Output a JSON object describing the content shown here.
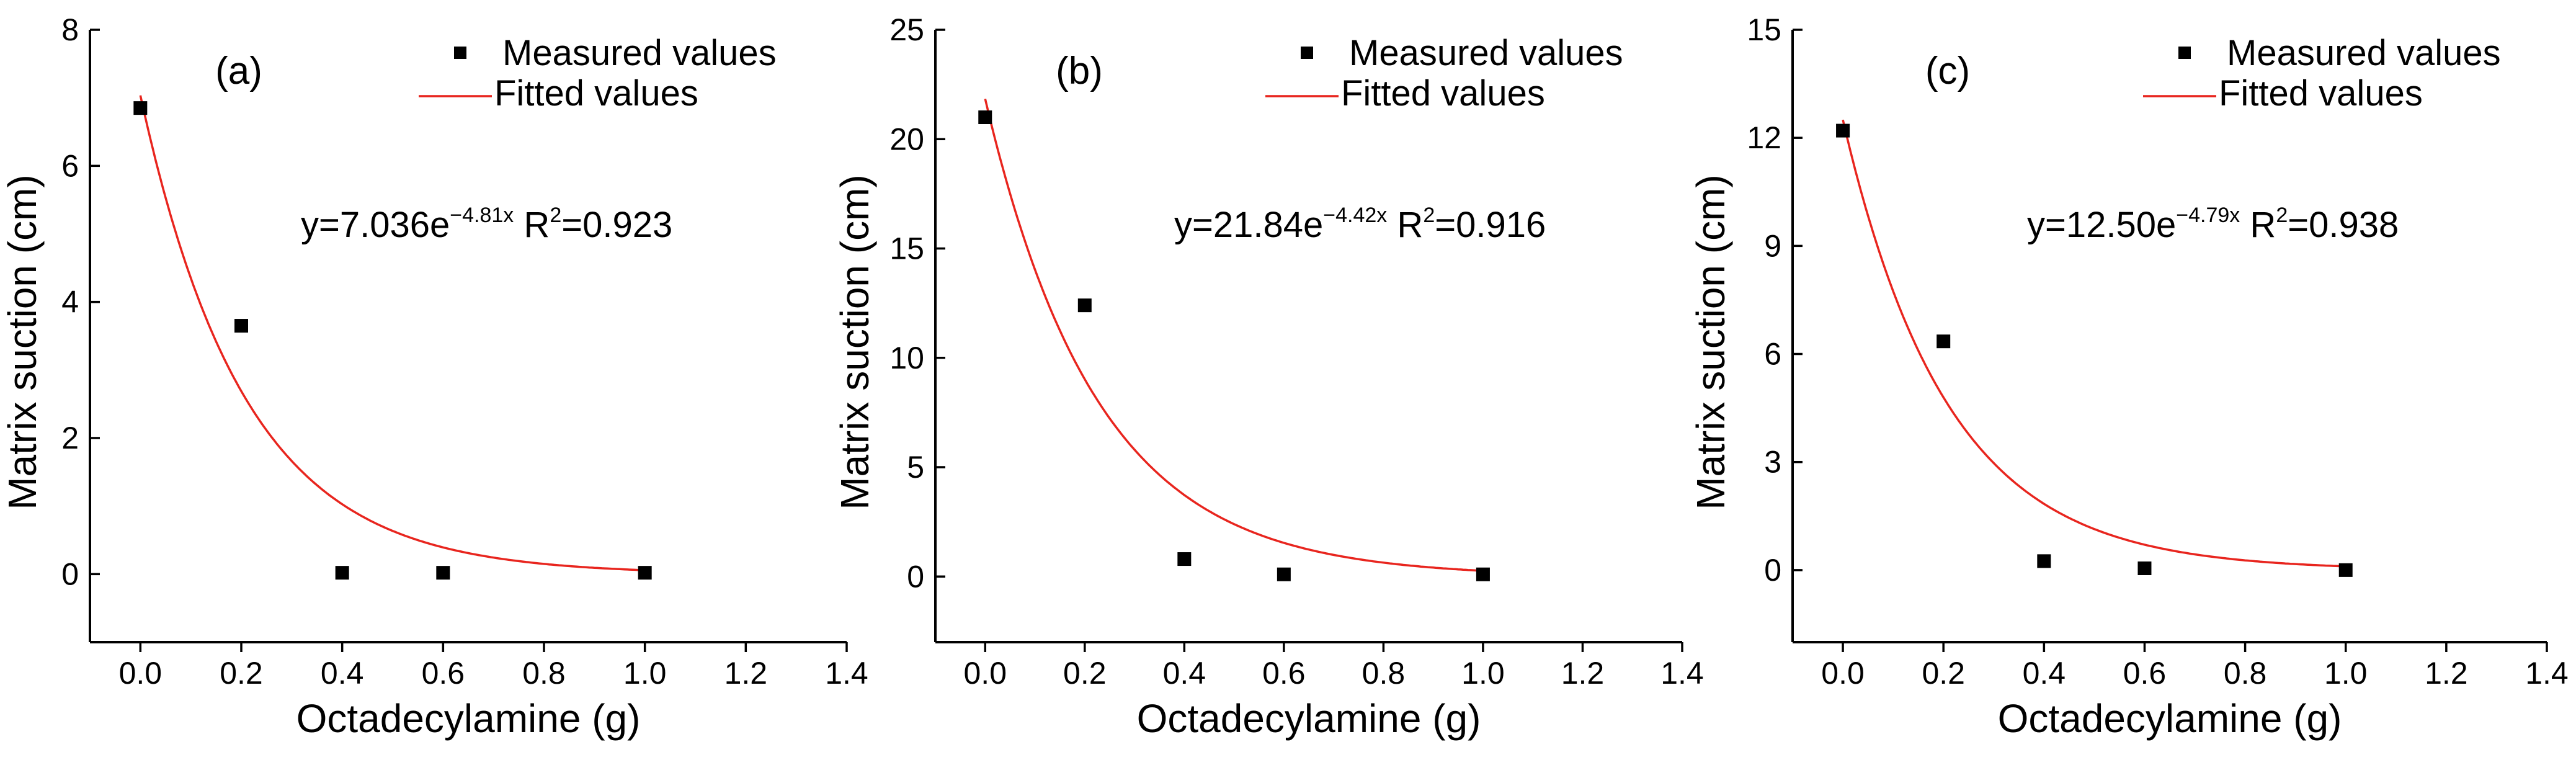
{
  "chart_data": [
    {
      "type": "scatter",
      "panel_label": "(a)",
      "xlabel": "Octadecylamine (g)",
      "ylabel": "Matrix suction (cm)",
      "xlim": [
        -0.1,
        1.4
      ],
      "ylim": [
        -1,
        8
      ],
      "xticks": [
        "0.0",
        "0.2",
        "0.4",
        "0.6",
        "0.8",
        "1.0",
        "1.2",
        "1.4"
      ],
      "yticks": [
        "0",
        "2",
        "4",
        "6",
        "8"
      ],
      "legend": {
        "measured": "Measured values",
        "fitted": "Fitted values",
        "placement": "top-right"
      },
      "series": [
        {
          "name": "Measured values",
          "x": [
            0.0,
            0.2,
            0.4,
            0.6,
            1.0
          ],
          "y": [
            6.85,
            3.65,
            0.02,
            0.02,
            0.02
          ]
        }
      ],
      "fit": {
        "a": 7.036,
        "b": 4.81,
        "x_range": [
          0.0,
          1.0
        ]
      },
      "equation": {
        "lead": "y=7.036e",
        "exp": "−4.81x",
        "r_label": " R",
        "r_sup": "2",
        "r_value": "=0.923"
      }
    },
    {
      "type": "scatter",
      "panel_label": "(b)",
      "xlabel": "Octadecylamine (g)",
      "ylabel": "Matrix suction (cm)",
      "xlim": [
        -0.1,
        1.4
      ],
      "ylim": [
        -3,
        25
      ],
      "xticks": [
        "0.0",
        "0.2",
        "0.4",
        "0.6",
        "0.8",
        "1.0",
        "1.2",
        "1.4"
      ],
      "yticks": [
        "0",
        "5",
        "10",
        "15",
        "20",
        "25"
      ],
      "legend": {
        "measured": "Measured values",
        "fitted": "Fitted values",
        "placement": "top-right"
      },
      "series": [
        {
          "name": "Measured values",
          "x": [
            0.0,
            0.2,
            0.4,
            0.6,
            1.0
          ],
          "y": [
            21.0,
            12.4,
            0.8,
            0.1,
            0.1
          ]
        }
      ],
      "fit": {
        "a": 21.84,
        "b": 4.42,
        "x_range": [
          0.0,
          1.0
        ]
      },
      "equation": {
        "lead": "y=21.84e",
        "exp": "−4.42x",
        "r_label": " R",
        "r_sup": "2",
        "r_value": "=0.916"
      }
    },
    {
      "type": "scatter",
      "panel_label": "(c)",
      "xlabel": "Octadecylamine (g)",
      "ylabel": "Matrix suction (cm)",
      "xlim": [
        -0.1,
        1.4
      ],
      "ylim": [
        -2,
        15
      ],
      "xticks": [
        "0.0",
        "0.2",
        "0.4",
        "0.6",
        "0.8",
        "1.0",
        "1.2",
        "1.4"
      ],
      "yticks": [
        "0",
        "3",
        "6",
        "9",
        "12",
        "15"
      ],
      "legend": {
        "measured": "Measured values",
        "fitted": "Fitted values",
        "placement": "top-right"
      },
      "series": [
        {
          "name": "Measured values",
          "x": [
            0.0,
            0.2,
            0.4,
            0.6,
            1.0
          ],
          "y": [
            12.2,
            6.35,
            0.25,
            0.05,
            0.0
          ]
        }
      ],
      "fit": {
        "a": 12.5,
        "b": 4.79,
        "x_range": [
          0.0,
          1.0
        ]
      },
      "equation": {
        "lead": "y=12.50e",
        "exp": "−4.79x",
        "r_label": " R",
        "r_sup": "2",
        "r_value": "=0.938"
      }
    }
  ]
}
